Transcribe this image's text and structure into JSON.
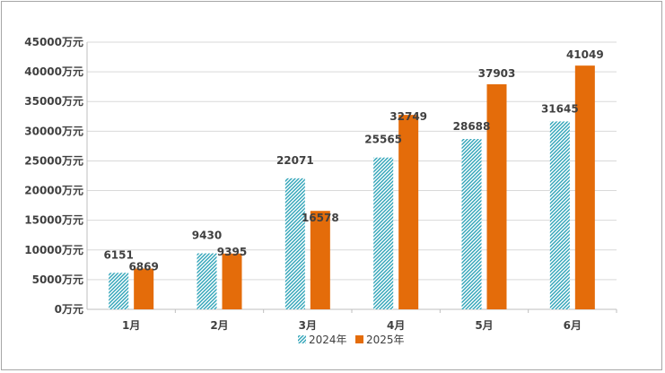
{
  "chart_data": {
    "type": "bar",
    "categories": [
      "1月",
      "2月",
      "3月",
      "4月",
      "5月",
      "6月"
    ],
    "series": [
      {
        "name": "2024年",
        "values": [
          6151,
          9430,
          22071,
          25565,
          28688,
          31645
        ],
        "color": "#2ea3b8",
        "pattern": "diagonal-hatch"
      },
      {
        "name": "2025年",
        "values": [
          6869,
          9395,
          16578,
          32749,
          37903,
          41049
        ],
        "color": "#e46c0a",
        "pattern": "solid"
      }
    ],
    "ylim": [
      0,
      45000
    ],
    "yticks": [
      0,
      5000,
      10000,
      15000,
      20000,
      25000,
      30000,
      35000,
      40000,
      45000
    ],
    "ytick_unit": "万元",
    "grid": true,
    "legend_position": "bottom",
    "title": "",
    "xlabel": "",
    "ylabel": ""
  }
}
